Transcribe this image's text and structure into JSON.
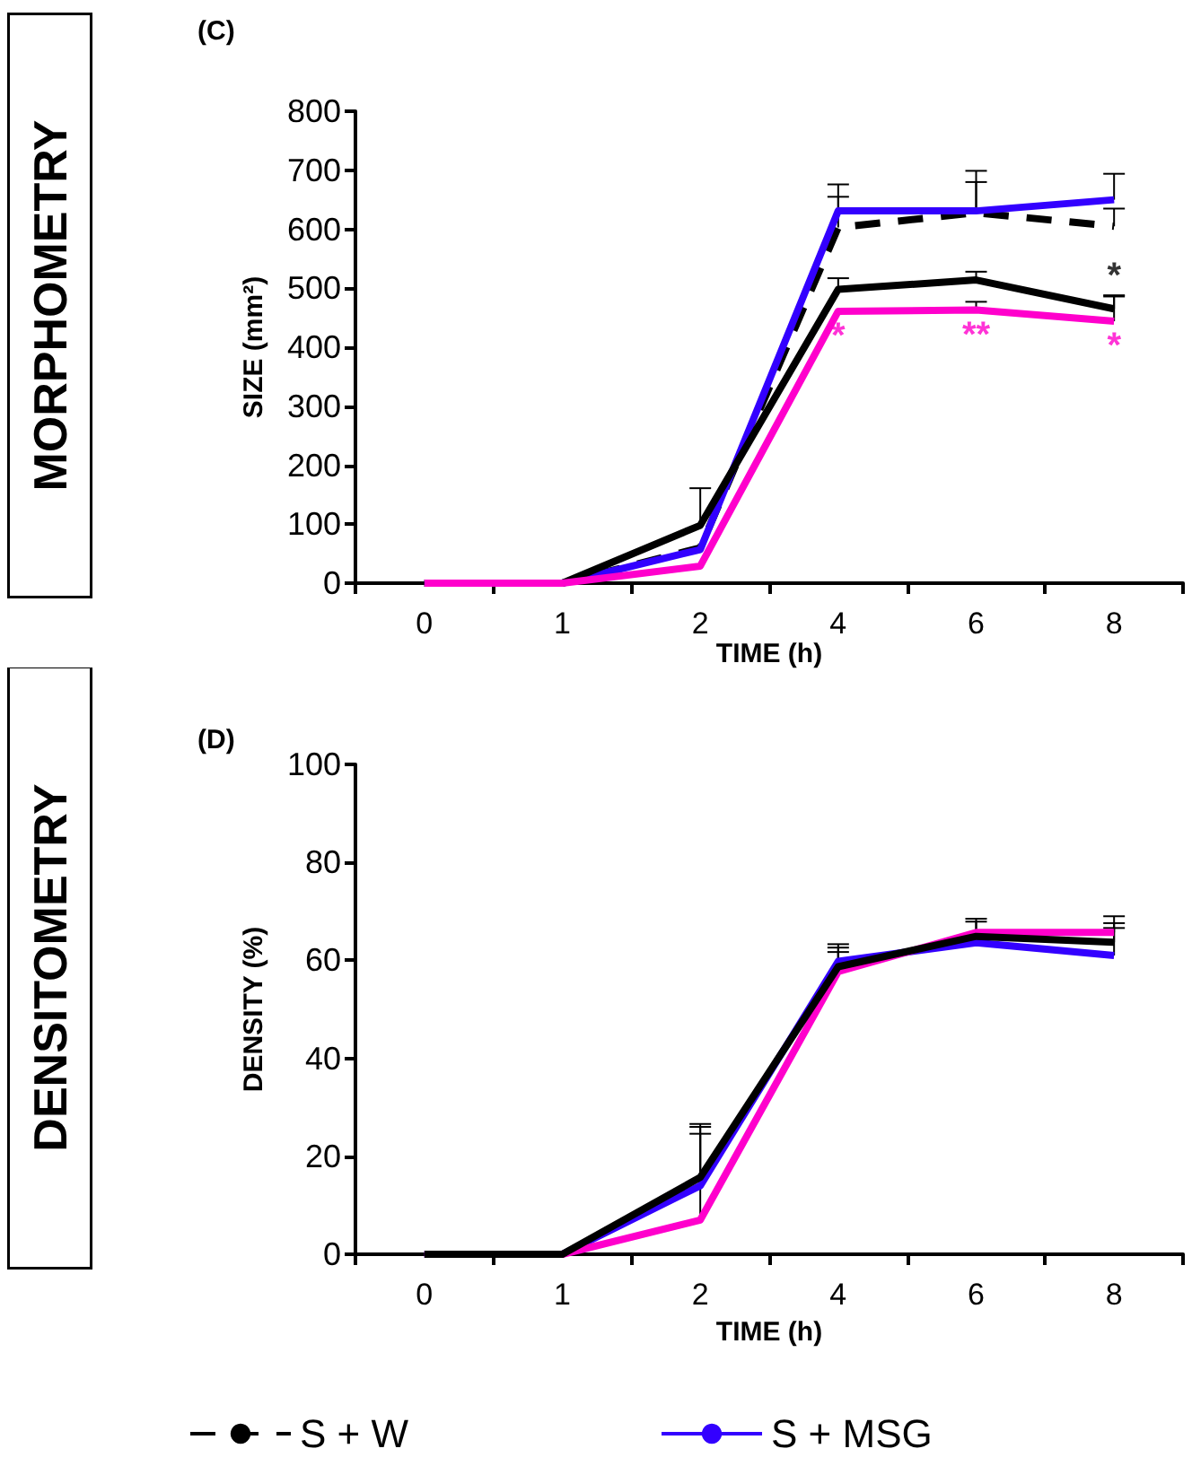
{
  "chart_data": [
    {
      "type": "line",
      "title": "(C)",
      "xlabel": "TIME (h)",
      "ylabel": "SIZE (mm²)",
      "categories": [
        "0",
        "1",
        "2",
        "4",
        "6",
        "8"
      ],
      "ylim": [
        0,
        800
      ],
      "yticks": [
        0,
        100,
        200,
        300,
        400,
        500,
        600,
        700,
        800
      ],
      "grid": false,
      "legend": "bottom",
      "marker": "none",
      "annotations": [
        "MORPHOMETRY",
        {
          "text": "*",
          "x": "8",
          "y": 465
        },
        {
          "text": "*",
          "x": "4",
          "y": 461
        },
        {
          "text": "**",
          "x": "6",
          "y": 463
        },
        {
          "text": "*",
          "x": "8",
          "y": 444
        }
      ],
      "series": [
        {
          "name": "S + W",
          "color": "#000000",
          "line_style": "dashed",
          "values": [
            0,
            0,
            60,
            603,
            628,
            605
          ],
          "errors": [
            null,
            null,
            null,
            [
              603,
              655
            ],
            [
              628,
              680
            ],
            [
              605,
              635
            ]
          ]
        },
        {
          "name": "S + MSG",
          "color": "#3300ff",
          "line_style": "solid",
          "values": [
            0,
            0,
            57,
            631,
            631,
            650
          ],
          "errors": [
            null,
            null,
            null,
            [
              631,
              676
            ],
            [
              631,
              699
            ],
            [
              650,
              694
            ]
          ]
        },
        {
          "color": "#000000",
          "line_style": "solid",
          "values": [
            0,
            0,
            98,
            498,
            514,
            465
          ],
          "errors": [
            null,
            null,
            [
              98,
              161
            ],
            [
              498,
              517
            ],
            [
              514,
              528
            ],
            [
              465,
              488
            ]
          ]
        },
        {
          "color": "#ff00cc",
          "line_style": "solid",
          "values": [
            0,
            0,
            29,
            461,
            463,
            444
          ],
          "errors": [
            null,
            null,
            null,
            null,
            [
              463,
              477
            ],
            [
              444,
              486
            ]
          ]
        }
      ]
    },
    {
      "type": "line",
      "title": "(D)",
      "xlabel": "TIME (h)",
      "ylabel": "DENSITY (%)",
      "categories": [
        "0",
        "1",
        "2",
        "4",
        "6",
        "8"
      ],
      "ylim": [
        0,
        100
      ],
      "yticks": [
        0,
        20,
        40,
        60,
        80,
        100
      ],
      "grid": false,
      "marker": "none",
      "annotations": [
        "DENSITOMETRY"
      ],
      "series": [
        {
          "color": "#3300ff",
          "line_style": "solid",
          "values": [
            0,
            0,
            14,
            59.8,
            63.6,
            61
          ],
          "errors": [
            null,
            null,
            [
              14,
              24.6
            ],
            [
              59.8,
              62.6
            ],
            null,
            [
              61,
              66.6
            ]
          ]
        },
        {
          "color": "#ff00cc",
          "line_style": "solid",
          "values": [
            0,
            0,
            7,
            57.7,
            65.7,
            65.7
          ],
          "errors": [
            null,
            null,
            [
              7,
              26.6
            ],
            [
              57.7,
              61.7
            ],
            [
              65.7,
              68.5
            ],
            [
              65.7,
              69
            ]
          ]
        },
        {
          "color": "#000000",
          "line_style": "solid",
          "values": [
            0,
            0,
            15.7,
            58.7,
            64.9,
            63.7
          ],
          "errors": [
            null,
            null,
            [
              15.7,
              26
            ],
            [
              58.7,
              63.3
            ],
            [
              64.9,
              67.9
            ],
            [
              63.7,
              67.6
            ]
          ]
        }
      ]
    }
  ]
}
